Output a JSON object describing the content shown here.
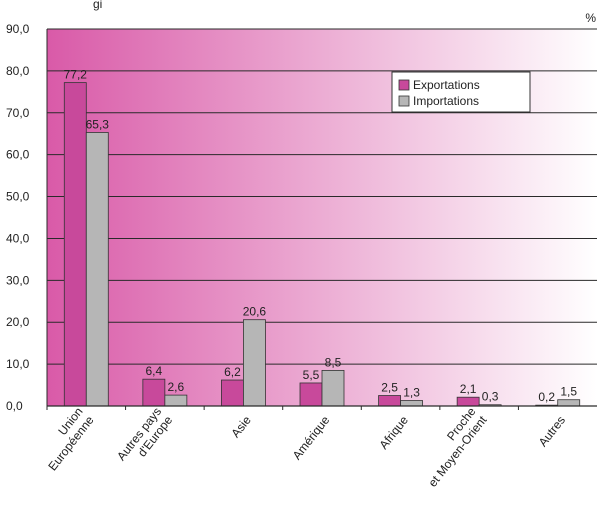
{
  "chart_data": {
    "type": "bar",
    "title": "",
    "top_fragment": "gi",
    "unit": "%",
    "categories": [
      [
        "Union",
        "Européenne"
      ],
      [
        "Autres pays",
        "d'Europe"
      ],
      [
        "Asie"
      ],
      [
        "Amérique"
      ],
      [
        "Afrique"
      ],
      [
        "Proche",
        "et Moyen-Orient"
      ],
      [
        "Autres"
      ]
    ],
    "series": [
      {
        "name": "Exportations",
        "color": "#c8499b",
        "values": [
          77.2,
          6.4,
          6.2,
          5.5,
          2.5,
          2.1,
          0.2
        ],
        "labels": [
          "77,2",
          "6,4",
          "6,2",
          "5,5",
          "2,5",
          "2,1",
          "0,2"
        ]
      },
      {
        "name": "Importations",
        "color": "#b6b6b6",
        "values": [
          65.3,
          2.6,
          20.6,
          8.5,
          1.3,
          0.3,
          1.5
        ],
        "labels": [
          "65,3",
          "2,6",
          "20,6",
          "8,5",
          "1,3",
          "0,3",
          "1,5"
        ]
      }
    ],
    "y_ticks": [
      "0,0",
      "10,0",
      "20,0",
      "30,0",
      "40,0",
      "50,0",
      "60,0",
      "70,0",
      "80,0",
      "90,0"
    ],
    "ylim": [
      0,
      90
    ],
    "grid": true,
    "legend": "top-right",
    "background": {
      "from": "#d95aa8",
      "to": "#ffffff"
    }
  }
}
